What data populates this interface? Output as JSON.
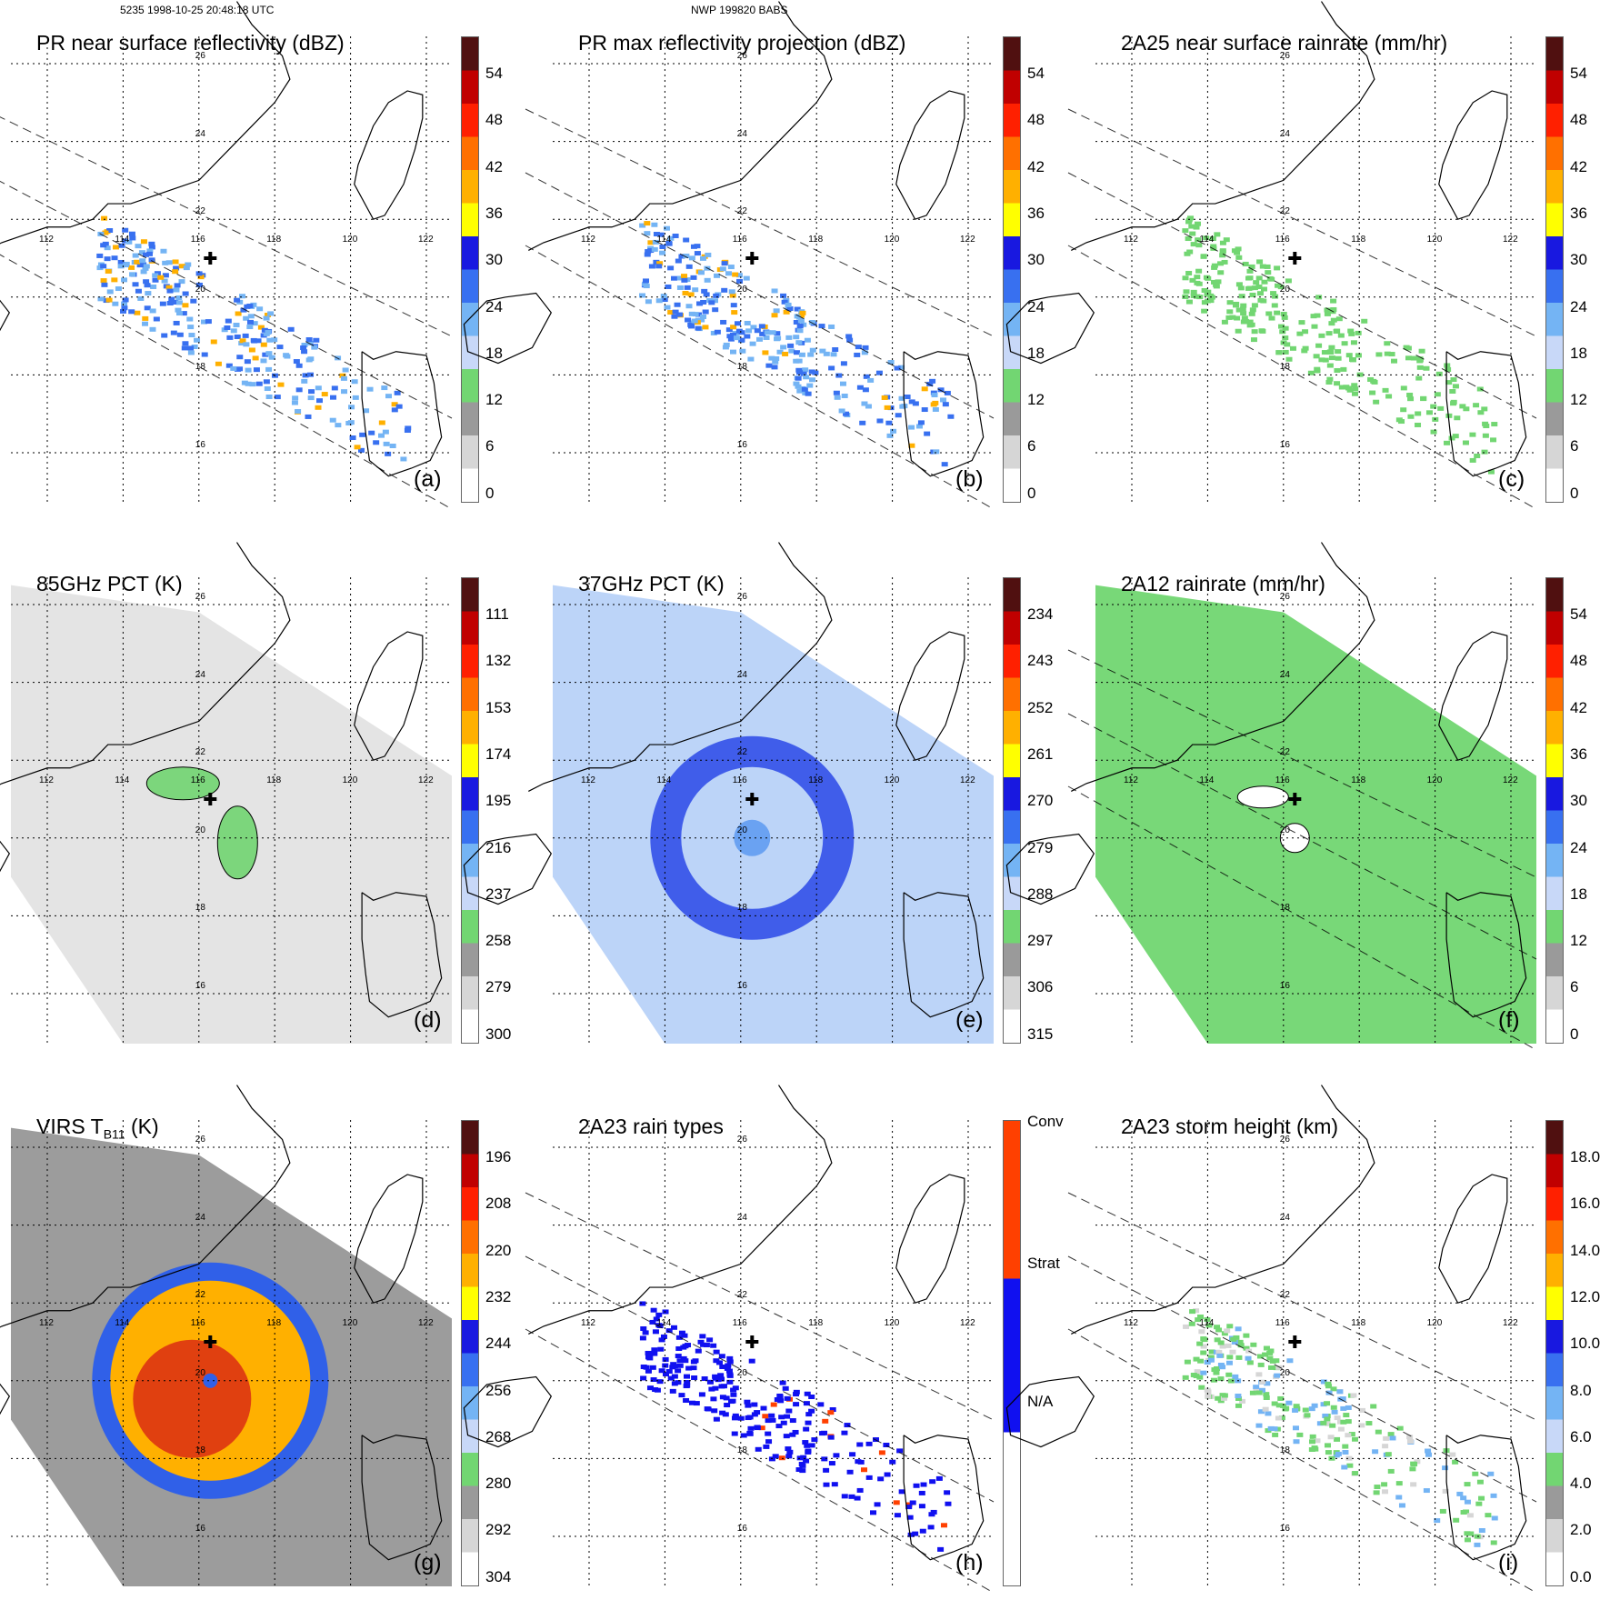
{
  "header": {
    "left": "5235 1998-10-25 20:48:18 UTC",
    "center": "NWP 199820 BABS"
  },
  "map": {
    "lat_labels": [
      "26",
      "24",
      "22",
      "20",
      "18",
      "16"
    ],
    "lon_labels": [
      "112",
      "114",
      "116",
      "118",
      "120",
      "122"
    ],
    "storm_center_marker": "plus-icon"
  },
  "panels": [
    {
      "id": "a",
      "title": "PR near surface reflectivity (dBZ)",
      "label": "(a)",
      "ticks": [
        "54",
        "48",
        "42",
        "36",
        "30",
        "24",
        "18",
        "12",
        "6",
        "0"
      ],
      "field": "swath-pr"
    },
    {
      "id": "b",
      "title": "PR max reflectivity projection (dBZ)",
      "label": "(b)",
      "ticks": [
        "54",
        "48",
        "42",
        "36",
        "30",
        "24",
        "18",
        "12",
        "6",
        "0"
      ],
      "field": "swath-pr"
    },
    {
      "id": "c",
      "title": "2A25 near surface rainrate (mm/hr)",
      "label": "(c)",
      "ticks": [
        "54",
        "48",
        "42",
        "36",
        "30",
        "24",
        "18",
        "12",
        "6",
        "0"
      ],
      "field": "swath-pr-rain"
    },
    {
      "id": "d",
      "title": "85GHz PCT (K)",
      "label": "(d)",
      "ticks": [
        "111",
        "132",
        "153",
        "174",
        "195",
        "216",
        "237",
        "258",
        "279",
        "300"
      ],
      "field": "tmi-85"
    },
    {
      "id": "e",
      "title": "37GHz PCT (K)",
      "label": "(e)",
      "ticks": [
        "234",
        "243",
        "252",
        "261",
        "270",
        "279",
        "288",
        "297",
        "306",
        "315"
      ],
      "field": "tmi-37"
    },
    {
      "id": "f",
      "title": "2A12 rainrate (mm/hr)",
      "label": "(f)",
      "ticks": [
        "54",
        "48",
        "42",
        "36",
        "30",
        "24",
        "18",
        "12",
        "6",
        "0"
      ],
      "field": "tmi-rain"
    },
    {
      "id": "g",
      "title_main": "VIRS T",
      "title_sub": "B11",
      "title_tail": " (K)",
      "label": "(g)",
      "ticks": [
        "196",
        "208",
        "220",
        "232",
        "244",
        "256",
        "268",
        "280",
        "292",
        "304"
      ],
      "field": "virs"
    },
    {
      "id": "h",
      "title": "2A23 rain types",
      "label": "(h)",
      "ticks": [
        "Conv",
        "Strat",
        "N/A"
      ],
      "field": "swath-types"
    },
    {
      "id": "i",
      "title": "2A23 storm height (km)",
      "label": "(i)",
      "ticks": [
        "18.0",
        "16.0",
        "14.0",
        "12.0",
        "10.0",
        "8.0",
        "6.0",
        "4.0",
        "2.0",
        "0.0"
      ],
      "field": "swath-height"
    }
  ],
  "colors": {
    "scale": [
      "#ffffff",
      "#d6d6d6",
      "#9a9a9a",
      "#72d672",
      "#c8d8f8",
      "#74b4f4",
      "#3870f0",
      "#1818e0",
      "#ffff00",
      "#ffb000",
      "#ff7000",
      "#ff2000",
      "#c00000",
      "#501010"
    ],
    "conv": "#ff4000",
    "strat": "#1010f0",
    "na": "#ffffff"
  }
}
